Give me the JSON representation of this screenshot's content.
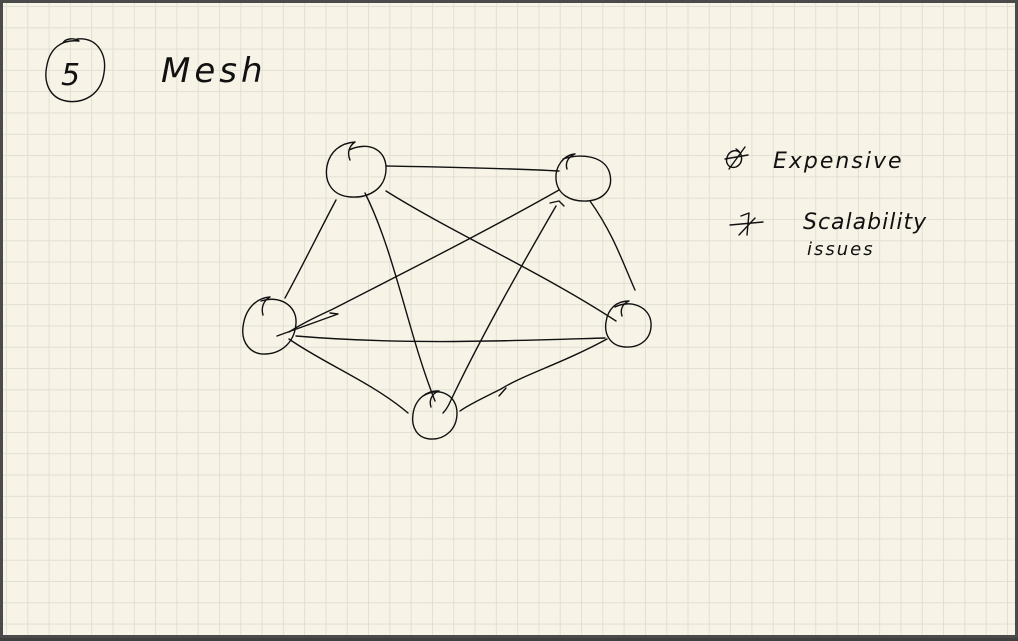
{
  "heading": {
    "number": "5",
    "title": "Mesh"
  },
  "notes": [
    "Expensive",
    "Scalability",
    "issues"
  ]
}
